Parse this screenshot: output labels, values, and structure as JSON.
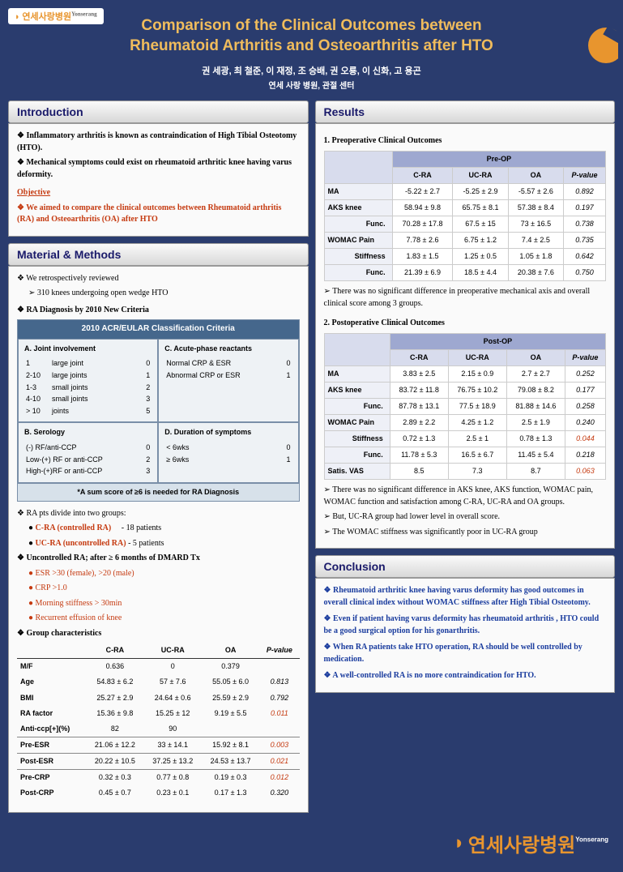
{
  "title": "Comparison of the Clinical Outcomes between\nRheumatoid Arthritis and Osteoarthritis after HTO",
  "authors": "권 세광, 최 철준, 이 재정, 조 승배, 권 오룡, 이 신화, 고 용곤",
  "affil": "연세 사랑 병원, 관절 센터",
  "logo": {
    "brand": "연세사랑병원",
    "super": "Yonserang"
  },
  "sections": {
    "intro": "Introduction",
    "methods": "Material & Methods",
    "results": "Results",
    "conclusion": "Conclusion"
  },
  "intro": {
    "b1": "Inflammatory arthritis is known as contraindication of High Tibial Osteotomy (HTO).",
    "b2": "Mechanical symptoms could exist on rheumatoid arthritic knee having varus deformity.",
    "obj_label": "Objective",
    "obj": "We aimed to compare the clinical outcomes between Rheumatoid arthritis (RA) and Osteoarthritis (OA) after HTO"
  },
  "methods": {
    "review": "We retrospectively reviewed",
    "review_sub": "310 knees undergoing open wedge HTO",
    "diag": "RA Diagnosis by 2010 New Criteria",
    "criteria_title": "2010 ACR/EULAR Classification Criteria",
    "A": {
      "title": "A. Joint involvement",
      "rows": [
        [
          "1",
          "large joint",
          "0"
        ],
        [
          "2-10",
          "large joints",
          "1"
        ],
        [
          "1-3",
          "small joints",
          "2"
        ],
        [
          "4-10",
          "small joints",
          "3"
        ],
        [
          "> 10",
          "joints",
          "5"
        ]
      ]
    },
    "B": {
      "title": "B. Serology",
      "rows": [
        [
          "(-) RF/anti-CCP",
          "0"
        ],
        [
          "Low-(+) RF or anti-CCP",
          "2"
        ],
        [
          "High-(+)RF or anti-CCP",
          "3"
        ]
      ]
    },
    "C": {
      "title": "C. Acute-phase reactants",
      "rows": [
        [
          "Normal CRP & ESR",
          "0"
        ],
        [
          "Abnormal CRP or ESR",
          "1"
        ]
      ]
    },
    "D": {
      "title": "D. Duration of symptoms",
      "rows": [
        [
          "< 6wks",
          "0"
        ],
        [
          "≥ 6wks",
          "1"
        ]
      ]
    },
    "criteria_foot": "*A sum score of ≥6 is needed for RA Diagnosis",
    "groups_intro": "RA pts divide into two groups:",
    "g1": "C-RA (controlled RA)",
    "g1n": "- 18 patients",
    "g2": "UC-RA (uncontrolled RA)",
    "g2n": "- 5 patients",
    "unc_hdr": "Uncontrolled RA; after ≥ 6 months of DMARD Tx",
    "u1": "ESR >30 (female), >20 (male)",
    "u2": "CRP >1.0",
    "u3": "Morning stiffness > 30min",
    "u4": "Recurrent effusion of knee",
    "grp_char": "Group characteristics",
    "char": {
      "cols": [
        "C-RA",
        "UC-RA",
        "OA",
        "P-value"
      ],
      "rows": [
        {
          "l": "M/F",
          "v": [
            "0.636",
            "0",
            "0.379",
            ""
          ]
        },
        {
          "l": "Age",
          "v": [
            "54.83 ± 6.2",
            "57 ± 7.6",
            "55.05 ± 6.0",
            "0.813"
          ]
        },
        {
          "l": "BMI",
          "v": [
            "25.27 ± 2.9",
            "24.64 ± 0.6",
            "25.59 ± 2.9",
            "0.792"
          ]
        },
        {
          "l": "RA factor",
          "v": [
            "15.36 ± 9.8",
            "15.25 ± 12",
            "9.19 ± 5.5",
            "0.011"
          ],
          "sig": true
        },
        {
          "l": "Anti-ccp[+](%)",
          "v": [
            "82",
            "90",
            "",
            ""
          ]
        },
        {
          "l": "Pre-ESR",
          "v": [
            "21.06 ± 12.2",
            "33 ± 14.1",
            "15.92 ± 8.1",
            "0.003"
          ],
          "sig": true,
          "sep": true
        },
        {
          "l": "Post-ESR",
          "v": [
            "20.22 ± 10.5",
            "37.25 ± 13.2",
            "24.53 ± 13.7",
            "0.021"
          ],
          "sig": true,
          "sep": true
        },
        {
          "l": "Pre-CRP",
          "v": [
            "0.32 ± 0.3",
            "0.77 ± 0.8",
            "0.19 ± 0.3",
            "0.012"
          ],
          "sig": true,
          "sep": true
        },
        {
          "l": "Post-CRP",
          "v": [
            "0.45 ± 0.7",
            "0.23 ± 0.1",
            "0.17 ± 1.3",
            "0.320"
          ]
        }
      ]
    }
  },
  "results": {
    "sub1": "1. Preoperative Clinical Outcomes",
    "pre": {
      "hdr": "Pre-OP",
      "cols": [
        "C-RA",
        "UC-RA",
        "OA",
        "P-value"
      ],
      "rows": [
        {
          "l": "MA",
          "v": [
            "-5.22 ± 2.7",
            "-5.25 ± 2.9",
            "-5.57 ± 2.6",
            "0.892"
          ]
        },
        {
          "l": "AKS knee",
          "v": [
            "58.94 ± 9.8",
            "65.75 ± 8.1",
            "57.38 ± 8.4",
            "0.197"
          ]
        },
        {
          "l": "Func.",
          "sub": true,
          "v": [
            "70.28 ± 17.8",
            "67.5 ± 15",
            "73 ± 16.5",
            "0.738"
          ]
        },
        {
          "l": "WOMAC Pain",
          "v": [
            "7.78 ± 2.6",
            "6.75 ± 1.2",
            "7.4 ± 2.5",
            "0.735"
          ]
        },
        {
          "l": "Stiffness",
          "sub": true,
          "v": [
            "1.83 ± 1.5",
            "1.25 ± 0.5",
            "1.05 ± 1.8",
            "0.642"
          ]
        },
        {
          "l": "Func.",
          "sub": true,
          "v": [
            "21.39 ± 6.9",
            "18.5 ± 4.4",
            "20.38 ± 7.6",
            "0.750"
          ]
        }
      ]
    },
    "n1": "There was no significant difference in preoperative mechanical axis and overall clinical score among 3 groups.",
    "sub2": "2. Postoperative Clinical Outcomes",
    "post": {
      "hdr": "Post-OP",
      "cols": [
        "C-RA",
        "UC-RA",
        "OA",
        "P-value"
      ],
      "rows": [
        {
          "l": "MA",
          "v": [
            "3.83 ± 2.5",
            "2.15 ± 0.9",
            "2.7 ± 2.7",
            "0.252"
          ]
        },
        {
          "l": "AKS knee",
          "v": [
            "83.72 ± 11.8",
            "76.75 ± 10.2",
            "79.08 ± 8.2",
            "0.177"
          ]
        },
        {
          "l": "Func.",
          "sub": true,
          "v": [
            "87.78 ± 13.1",
            "77.5 ± 18.9",
            "81.88 ± 14.6",
            "0.258"
          ]
        },
        {
          "l": "WOMAC Pain",
          "v": [
            "2.89 ± 2.2",
            "4.25 ± 1.2",
            "2.5 ± 1.9",
            "0.240"
          ]
        },
        {
          "l": "Stiffness",
          "sub": true,
          "v": [
            "0.72 ± 1.3",
            "2.5 ± 1",
            "0.78 ± 1.3",
            "0.044"
          ],
          "sig": true
        },
        {
          "l": "Func.",
          "sub": true,
          "v": [
            "11.78 ± 5.3",
            "16.5 ± 6.7",
            "11.45 ± 5.4",
            "0.218"
          ]
        },
        {
          "l": "Satis. VAS",
          "v": [
            "8.5",
            "7.3",
            "8.7",
            "0.063"
          ],
          "sig": true
        }
      ]
    },
    "n2": "There was no significant difference in AKS knee, AKS function, WOMAC pain, WOMAC function and satisfaction among C-RA, UC-RA and OA groups.",
    "n3": "But, UC-RA group had lower level in overall score.",
    "n4": "The WOMAC stiffness was significantly poor in UC-RA group"
  },
  "conclusion": {
    "c1": "Rheumatoid arthritic knee having varus deformity has good outcomes in overall clinical index without WOMAC stiffness after High Tibial Osteotomy.",
    "c2": "Even if patient having varus deformity has rheumatoid arthritis , HTO could be a good surgical option for his gonarthritis.",
    "c3": "When RA patients take HTO operation, RA should be well controlled by medication.",
    "c4": "A well-controlled RA is no more contraindication for HTO."
  },
  "colors": {
    "bg": "#2a3c6e",
    "accent": "#f0bc5c",
    "orange": "#e8952e",
    "panel": "#fafafa",
    "red": "#c53a10",
    "blue": "#1a3c9e",
    "criteria": "#45678c"
  }
}
